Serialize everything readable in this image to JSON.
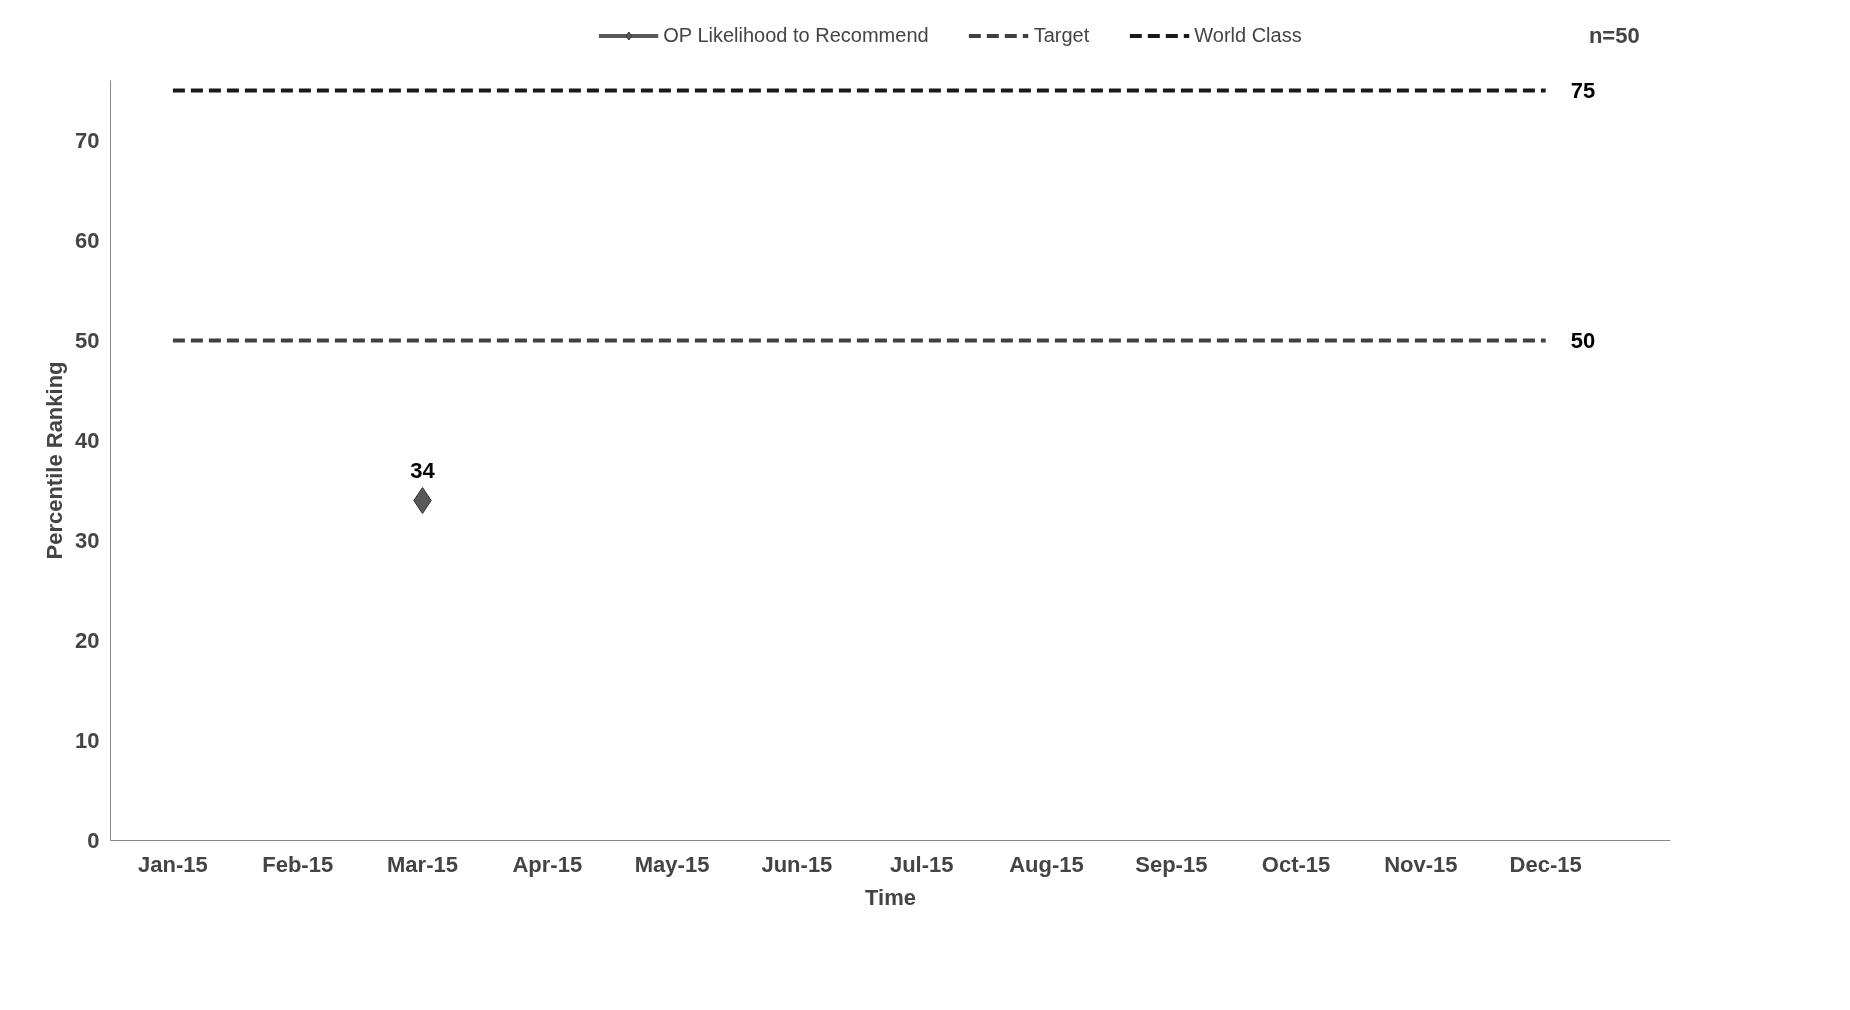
{
  "chart_data": {
    "type": "line",
    "xlabel": "Time",
    "ylabel": "Percentile Ranking",
    "categories": [
      "Jan-15",
      "Feb-15",
      "Mar-15",
      "Apr-15",
      "May-15",
      "Jun-15",
      "Jul-15",
      "Aug-15",
      "Sep-15",
      "Oct-15",
      "Nov-15",
      "Dec-15"
    ],
    "series": [
      {
        "name": "OP Likelihood to Recommend",
        "color": "#595959",
        "marker": "diamond",
        "line_style": "solid",
        "values": [
          null,
          null,
          34,
          null,
          null,
          null,
          null,
          null,
          null,
          null,
          null,
          null
        ],
        "value_labels": [
          null,
          null,
          "34",
          null,
          null,
          null,
          null,
          null,
          null,
          null,
          null,
          null
        ]
      },
      {
        "name": "Target",
        "color": "#404040",
        "marker": "none",
        "line_style": "dashed",
        "values": [
          50,
          50,
          50,
          50,
          50,
          50,
          50,
          50,
          50,
          50,
          50,
          50
        ],
        "value_labels": [
          null,
          null,
          null,
          null,
          null,
          null,
          null,
          null,
          null,
          null,
          null,
          "50"
        ]
      },
      {
        "name": "World Class",
        "color": "#1a1a1a",
        "marker": "none",
        "line_style": "dashed",
        "values": [
          75,
          75,
          75,
          75,
          75,
          75,
          75,
          75,
          75,
          75,
          75,
          75
        ],
        "value_labels": [
          null,
          null,
          null,
          null,
          null,
          null,
          null,
          null,
          null,
          null,
          null,
          "75"
        ]
      }
    ],
    "ylim": [
      0,
      76
    ],
    "yticks": [
      0,
      10,
      20,
      30,
      40,
      50,
      60,
      70
    ],
    "grid": false,
    "legend": "top",
    "annotations": [
      "n=50"
    ]
  }
}
